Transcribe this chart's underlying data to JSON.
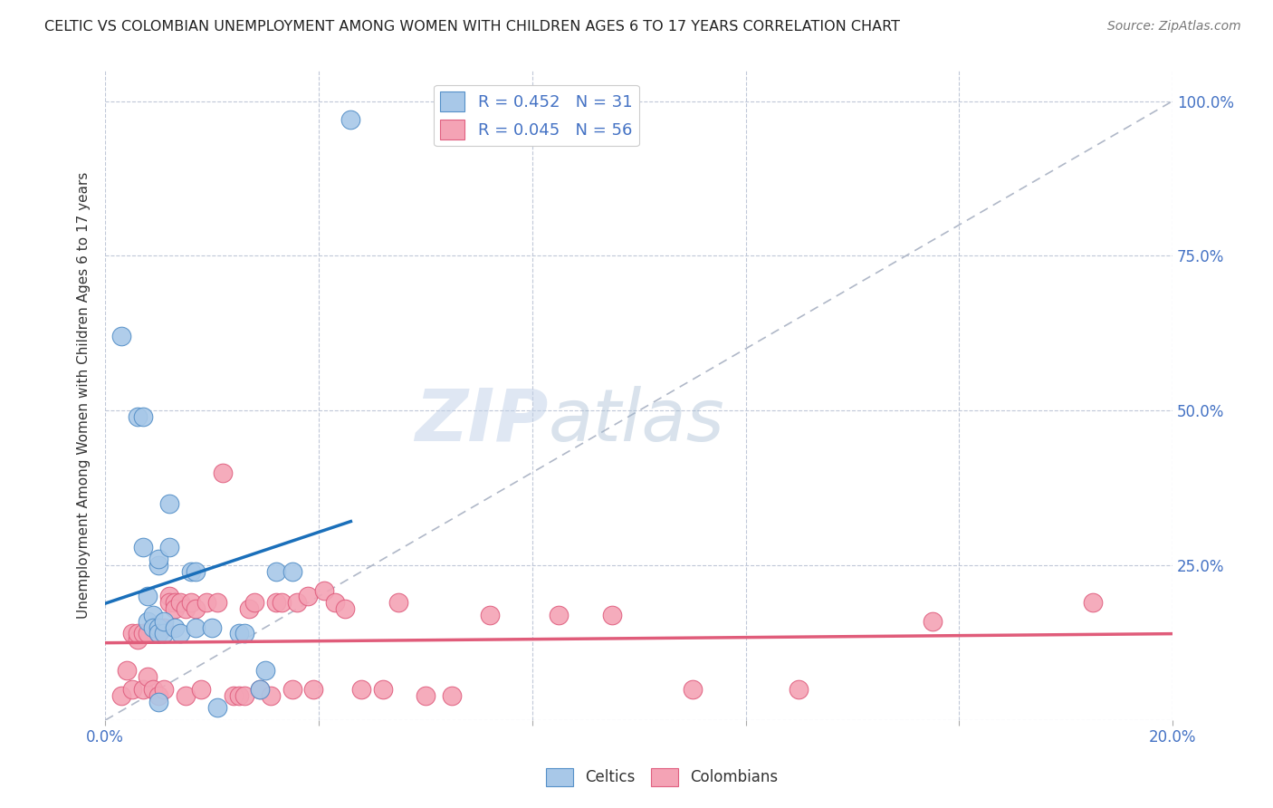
{
  "title": "CELTIC VS COLOMBIAN UNEMPLOYMENT AMONG WOMEN WITH CHILDREN AGES 6 TO 17 YEARS CORRELATION CHART",
  "source": "Source: ZipAtlas.com",
  "ylabel": "Unemployment Among Women with Children Ages 6 to 17 years",
  "xlim": [
    0.0,
    0.2
  ],
  "ylim": [
    0.0,
    1.05
  ],
  "celtic_R": 0.452,
  "celtic_N": 31,
  "colombian_R": 0.045,
  "colombian_N": 56,
  "celtic_color": "#a8c8e8",
  "colombian_color": "#f4a3b5",
  "celtic_edge_color": "#5590c8",
  "colombian_edge_color": "#e06080",
  "celtic_line_color": "#1a6fba",
  "colombian_line_color": "#e05c7a",
  "diagonal_color": "#b0b8c8",
  "watermark_zip": "ZIP",
  "watermark_atlas": "atlas",
  "background_color": "#ffffff",
  "legend_label1": "Celtics",
  "legend_label2": "Colombians",
  "celtic_x": [
    0.003,
    0.006,
    0.007,
    0.007,
    0.008,
    0.008,
    0.009,
    0.009,
    0.01,
    0.01,
    0.01,
    0.01,
    0.01,
    0.011,
    0.011,
    0.012,
    0.012,
    0.013,
    0.014,
    0.016,
    0.017,
    0.017,
    0.02,
    0.021,
    0.025,
    0.026,
    0.029,
    0.03,
    0.032,
    0.035,
    0.046
  ],
  "celtic_y": [
    0.62,
    0.49,
    0.49,
    0.28,
    0.16,
    0.2,
    0.17,
    0.15,
    0.25,
    0.26,
    0.15,
    0.14,
    0.03,
    0.14,
    0.16,
    0.28,
    0.35,
    0.15,
    0.14,
    0.24,
    0.24,
    0.15,
    0.15,
    0.02,
    0.14,
    0.14,
    0.05,
    0.08,
    0.24,
    0.24,
    0.97
  ],
  "colombian_x": [
    0.003,
    0.004,
    0.005,
    0.005,
    0.006,
    0.006,
    0.007,
    0.007,
    0.008,
    0.008,
    0.009,
    0.01,
    0.01,
    0.011,
    0.011,
    0.012,
    0.012,
    0.013,
    0.013,
    0.014,
    0.015,
    0.015,
    0.016,
    0.017,
    0.018,
    0.019,
    0.021,
    0.022,
    0.024,
    0.025,
    0.026,
    0.027,
    0.028,
    0.029,
    0.031,
    0.032,
    0.033,
    0.035,
    0.036,
    0.038,
    0.039,
    0.041,
    0.043,
    0.045,
    0.048,
    0.052,
    0.055,
    0.06,
    0.065,
    0.072,
    0.085,
    0.095,
    0.11,
    0.13,
    0.155,
    0.185
  ],
  "colombian_y": [
    0.04,
    0.08,
    0.05,
    0.14,
    0.13,
    0.14,
    0.14,
    0.05,
    0.14,
    0.07,
    0.05,
    0.14,
    0.04,
    0.15,
    0.05,
    0.2,
    0.19,
    0.19,
    0.18,
    0.19,
    0.18,
    0.04,
    0.19,
    0.18,
    0.05,
    0.19,
    0.19,
    0.4,
    0.04,
    0.04,
    0.04,
    0.18,
    0.19,
    0.05,
    0.04,
    0.19,
    0.19,
    0.05,
    0.19,
    0.2,
    0.05,
    0.21,
    0.19,
    0.18,
    0.05,
    0.05,
    0.19,
    0.04,
    0.04,
    0.17,
    0.17,
    0.17,
    0.05,
    0.05,
    0.16,
    0.19
  ]
}
